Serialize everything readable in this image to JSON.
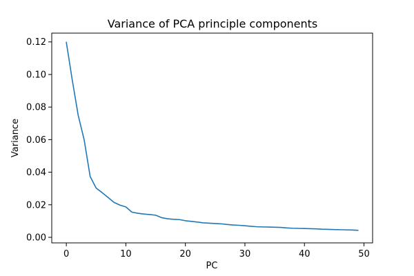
{
  "chart_data": {
    "type": "line",
    "title": "Variance of PCA principle components",
    "xlabel": "PC",
    "ylabel": "Variance",
    "xlim": [
      -2.45,
      51.45
    ],
    "ylim": [
      -0.0034,
      0.1254
    ],
    "xticks": [
      0,
      10,
      20,
      30,
      40,
      50
    ],
    "yticks": [
      0.0,
      0.02,
      0.04,
      0.06,
      0.08,
      0.1,
      0.12
    ],
    "ytick_labels": [
      "0.00",
      "0.02",
      "0.04",
      "0.06",
      "0.08",
      "0.10",
      "0.12"
    ],
    "grid": false,
    "legend": "none",
    "series": [
      {
        "color": "#1f77b4",
        "x": [
          0,
          1,
          2,
          3,
          4,
          5,
          6,
          7,
          8,
          9,
          10,
          11,
          12,
          13,
          14,
          15,
          16,
          17,
          18,
          19,
          20,
          21,
          22,
          23,
          24,
          25,
          26,
          27,
          28,
          29,
          30,
          31,
          32,
          33,
          34,
          35,
          36,
          37,
          38,
          39,
          40,
          41,
          42,
          43,
          44,
          45,
          46,
          47,
          48,
          49
        ],
        "values": [
          0.1198,
          0.0965,
          0.0748,
          0.0598,
          0.0374,
          0.0303,
          0.0275,
          0.0245,
          0.0215,
          0.0198,
          0.0187,
          0.0155,
          0.0148,
          0.0143,
          0.014,
          0.0136,
          0.0121,
          0.0114,
          0.0111,
          0.0109,
          0.0102,
          0.0098,
          0.0094,
          0.0089,
          0.0087,
          0.0085,
          0.0083,
          0.0079,
          0.0076,
          0.0074,
          0.0071,
          0.0068,
          0.0065,
          0.0064,
          0.0063,
          0.0062,
          0.0061,
          0.0058,
          0.0056,
          0.0055,
          0.0054,
          0.0053,
          0.0052,
          0.005,
          0.0049,
          0.0048,
          0.0047,
          0.0046,
          0.0045,
          0.0043
        ]
      }
    ]
  }
}
